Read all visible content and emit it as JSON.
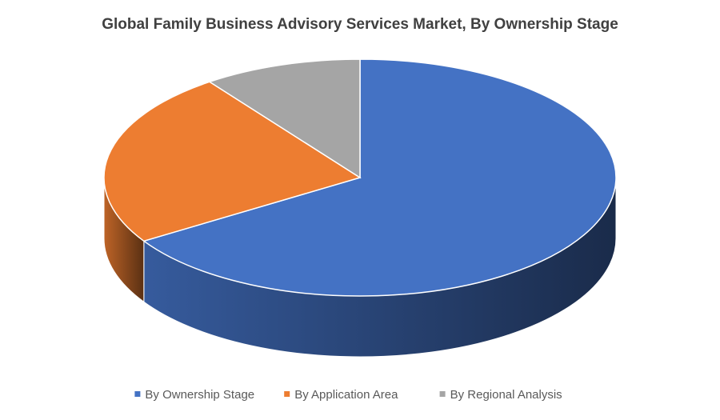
{
  "chart_data": {
    "type": "pie",
    "title": "Global Family Business Advisory Services Market, By Ownership Stage",
    "categories": [
      "By Ownership Stage",
      "By Application Area",
      "By Regional Analysis"
    ],
    "values": [
      66,
      24,
      10
    ],
    "colors": [
      "#4472c4",
      "#ed7d31",
      "#a5a5a5"
    ]
  }
}
